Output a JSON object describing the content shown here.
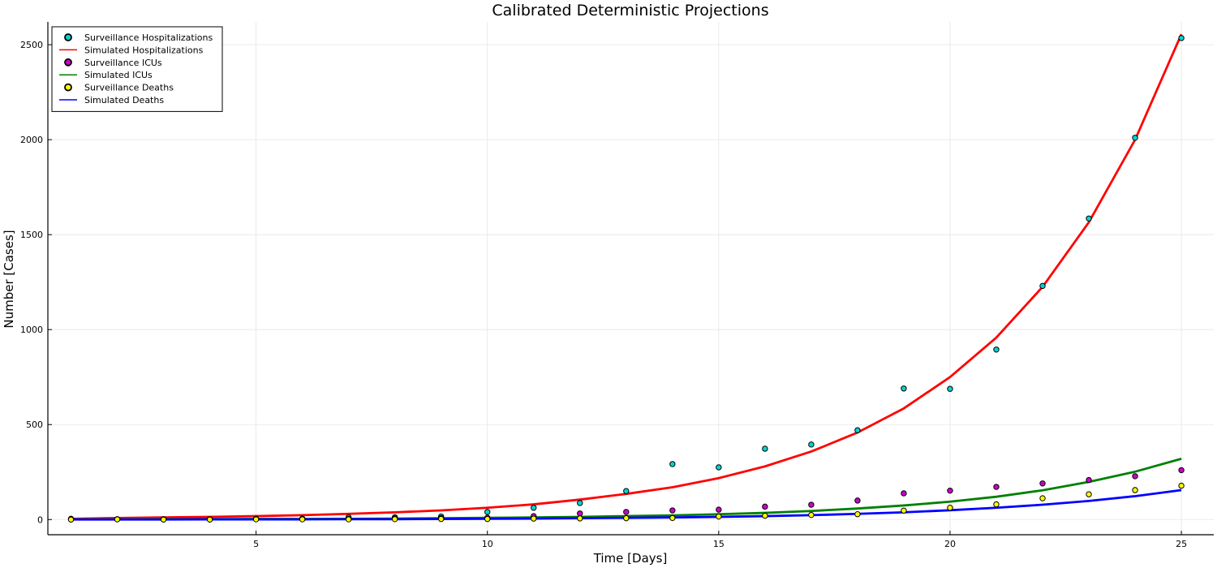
{
  "chart_data": {
    "type": "scatter",
    "title": "Calibrated Deterministic Projections",
    "xlabel": "Time [Days]",
    "ylabel": "Number [Cases]",
    "xlim": [
      0.5,
      25.7
    ],
    "ylim": [
      -80,
      2620
    ],
    "xticks": [
      5,
      10,
      15,
      20,
      25
    ],
    "yticks": [
      0,
      500,
      1000,
      1500,
      2000,
      2500
    ],
    "grid": true,
    "legend_position": "top-left",
    "x": [
      1,
      2,
      3,
      4,
      5,
      6,
      7,
      8,
      9,
      10,
      11,
      12,
      13,
      14,
      15,
      16,
      17,
      18,
      19,
      20,
      21,
      22,
      23,
      24,
      25
    ],
    "series": [
      {
        "name": "Surveillance Hospitalizations",
        "kind": "scatter",
        "color": "#00d4d4",
        "values": [
          4,
          2,
          2,
          1,
          4,
          5,
          12,
          12,
          16,
          40,
          62,
          87,
          150,
          292,
          275,
          373,
          395,
          470,
          690,
          688,
          895,
          1230,
          1585,
          2010,
          2535
        ]
      },
      {
        "name": "Simulated Hospitalizations",
        "kind": "line",
        "color": "#ff0000",
        "values": [
          4,
          8,
          11,
          14,
          18,
          23,
          30,
          38,
          48,
          62,
          80,
          105,
          135,
          170,
          218,
          280,
          358,
          458,
          585,
          750,
          958,
          1225,
          1565,
          2000,
          2555
        ]
      },
      {
        "name": "Surveillance ICUs",
        "kind": "scatter",
        "color": "#cc00cc",
        "values": [
          1,
          1,
          1,
          1,
          2,
          2,
          4,
          6,
          8,
          10,
          18,
          32,
          40,
          48,
          52,
          68,
          78,
          100,
          138,
          152,
          172,
          190,
          208,
          228,
          260
        ]
      },
      {
        "name": "Simulated ICUs",
        "kind": "line",
        "color": "#008000",
        "values": [
          1,
          1,
          2,
          2,
          3,
          3,
          4,
          5,
          7,
          9,
          11,
          14,
          18,
          22,
          28,
          35,
          45,
          58,
          74,
          94,
          120,
          154,
          198,
          252,
          320
        ]
      },
      {
        "name": "Surveillance Deaths",
        "kind": "scatter",
        "color": "#ffff00",
        "values": [
          0,
          1,
          0,
          0,
          1,
          1,
          1,
          2,
          3,
          3,
          5,
          6,
          7,
          8,
          16,
          20,
          24,
          28,
          47,
          62,
          80,
          112,
          133,
          155,
          178
        ]
      },
      {
        "name": "Simulated Deaths",
        "kind": "line",
        "color": "#0000ff",
        "values": [
          0,
          0,
          0,
          1,
          1,
          1,
          2,
          2,
          3,
          4,
          5,
          7,
          9,
          11,
          14,
          18,
          23,
          30,
          38,
          49,
          62,
          78,
          98,
          123,
          155
        ]
      }
    ]
  }
}
